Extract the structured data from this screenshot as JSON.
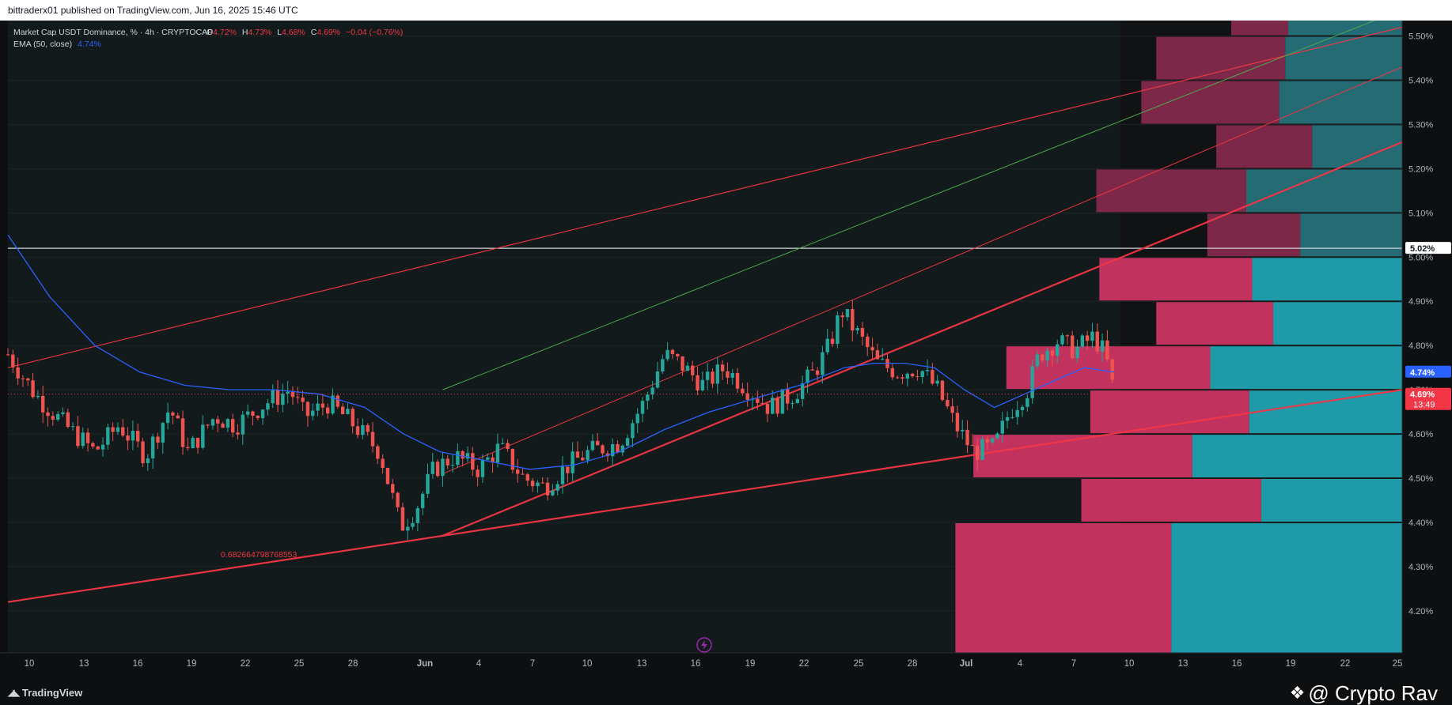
{
  "header": {
    "published": "bittraderx01 published on TradingView.com, Jun 16, 2025 15:46 UTC"
  },
  "legend": {
    "symbol": "Market Cap USDT Dominance, % · 4h · CRYPTOCAP",
    "o_label": "O",
    "o_value": "4.72%",
    "h_label": "H",
    "h_value": "4.73%",
    "l_label": "L",
    "l_value": "4.68%",
    "c_label": "C",
    "c_value": "4.69%",
    "change": "−0.04 (−0.76%)",
    "ema_label": "EMA (50, close)",
    "ema_value": "4.74%"
  },
  "price_labels": {
    "level": "5.02%",
    "ema": "4.74%",
    "last": "4.69%",
    "countdown": "13:49"
  },
  "annotation": "0.682664798768553",
  "footer": {
    "brand": "TradingView",
    "watermark": "@ Crypto Rav"
  },
  "colors": {
    "up": "#26a69a",
    "down": "#ef5350",
    "ema": "#2962ff",
    "trend": "#f23645",
    "green_line": "#4caf50",
    "vp_pink": "#c2325f",
    "vp_teal": "#1e9aa8"
  },
  "chart_data": {
    "type": "candlestick",
    "title": "Market Cap USDT Dominance, % · 4h · CRYPTOCAP",
    "timeframe": "4h",
    "x_ticks": [
      "10",
      "13",
      "16",
      "19",
      "22",
      "25",
      "28",
      "Jun",
      "4",
      "7",
      "10",
      "13",
      "16",
      "19",
      "22",
      "25",
      "28",
      "Jul",
      "4",
      "7",
      "10",
      "13",
      "16",
      "19",
      "22",
      "25"
    ],
    "y_ticks": [
      "5.50%",
      "5.40%",
      "5.30%",
      "5.20%",
      "5.10%",
      "5.00%",
      "4.90%",
      "4.80%",
      "4.70%",
      "4.60%",
      "4.50%",
      "4.40%",
      "4.30%",
      "4.20%"
    ],
    "y_tick_values": [
      5.5,
      5.4,
      5.3,
      5.2,
      5.1,
      5.0,
      4.9,
      4.8,
      4.7,
      4.6,
      4.5,
      4.4,
      4.3,
      4.2
    ],
    "ylim": [
      4.105,
      5.535
    ],
    "x_range_days": [
      9.6,
      56.1
    ],
    "last_day": 46.5,
    "shaded_until_day": 46.7,
    "close_path": [
      [
        9.6,
        4.78
      ],
      [
        10.5,
        4.69
      ],
      [
        11.5,
        4.62
      ],
      [
        12.5,
        4.56
      ],
      [
        13.3,
        4.62
      ],
      [
        14.2,
        4.55
      ],
      [
        15.0,
        4.66
      ],
      [
        15.6,
        4.56
      ],
      [
        16.5,
        4.64
      ],
      [
        17.2,
        4.62
      ],
      [
        18.2,
        4.67
      ],
      [
        19.0,
        4.7
      ],
      [
        19.5,
        4.64
      ],
      [
        20.3,
        4.67
      ],
      [
        21.0,
        4.63
      ],
      [
        22.0,
        4.56
      ],
      [
        22.7,
        4.39
      ],
      [
        23.2,
        4.43
      ],
      [
        23.8,
        4.52
      ],
      [
        24.5,
        4.55
      ],
      [
        25.3,
        4.52
      ],
      [
        26.0,
        4.57
      ],
      [
        26.8,
        4.5
      ],
      [
        27.5,
        4.48
      ],
      [
        28.3,
        4.53
      ],
      [
        29.0,
        4.56
      ],
      [
        30.0,
        4.58
      ],
      [
        30.8,
        4.67
      ],
      [
        31.5,
        4.78
      ],
      [
        32.0,
        4.76
      ],
      [
        32.8,
        4.71
      ],
      [
        33.5,
        4.75
      ],
      [
        34.3,
        4.7
      ],
      [
        35.0,
        4.66
      ],
      [
        35.8,
        4.69
      ],
      [
        36.5,
        4.74
      ],
      [
        37.0,
        4.8
      ],
      [
        37.4,
        4.88
      ],
      [
        38.0,
        4.82
      ],
      [
        38.6,
        4.76
      ],
      [
        39.3,
        4.74
      ],
      [
        40.0,
        4.75
      ],
      [
        40.6,
        4.7
      ],
      [
        41.2,
        4.62
      ],
      [
        41.8,
        4.56
      ],
      [
        42.5,
        4.57
      ],
      [
        43.0,
        4.65
      ],
      [
        43.6,
        4.7
      ],
      [
        44.0,
        4.78
      ],
      [
        44.6,
        4.81
      ],
      [
        45.2,
        4.79
      ],
      [
        45.8,
        4.82
      ],
      [
        46.2,
        4.78
      ],
      [
        46.5,
        4.69
      ]
    ],
    "ema_50": [
      [
        9.6,
        5.05
      ],
      [
        11.0,
        4.91
      ],
      [
        12.5,
        4.8
      ],
      [
        14.0,
        4.74
      ],
      [
        15.5,
        4.71
      ],
      [
        17.0,
        4.7
      ],
      [
        18.5,
        4.7
      ],
      [
        20.0,
        4.69
      ],
      [
        21.5,
        4.66
      ],
      [
        22.8,
        4.6
      ],
      [
        24.0,
        4.56
      ],
      [
        25.5,
        4.54
      ],
      [
        27.0,
        4.52
      ],
      [
        28.5,
        4.53
      ],
      [
        30.0,
        4.56
      ],
      [
        31.5,
        4.61
      ],
      [
        33.0,
        4.65
      ],
      [
        34.5,
        4.68
      ],
      [
        36.0,
        4.71
      ],
      [
        37.5,
        4.75
      ],
      [
        38.5,
        4.76
      ],
      [
        39.5,
        4.76
      ],
      [
        40.5,
        4.75
      ],
      [
        41.5,
        4.7
      ],
      [
        42.5,
        4.66
      ],
      [
        43.5,
        4.69
      ],
      [
        44.5,
        4.72
      ],
      [
        45.5,
        4.75
      ],
      [
        46.5,
        4.74
      ]
    ],
    "horizontal_line": {
      "value": 5.02,
      "label": "5.02%"
    },
    "last_price": 4.69,
    "ema_last": 4.74,
    "trendlines": [
      {
        "name": "channel-upper",
        "from": [
          9.6,
          4.75
        ],
        "to": [
          56.1,
          5.52
        ],
        "color": "#f23645",
        "width": 1.2
      },
      {
        "name": "green-diagonal",
        "from": [
          24.1,
          4.7
        ],
        "to": [
          56.1,
          5.56
        ],
        "color": "#4caf50",
        "width": 1.0
      },
      {
        "name": "thin-red-diagonal",
        "from": [
          24.1,
          4.51
        ],
        "to": [
          56.1,
          5.43
        ],
        "color": "#f23645",
        "width": 1.0
      },
      {
        "name": "bold-support",
        "from": [
          24.1,
          4.37
        ],
        "to": [
          56.1,
          5.26
        ],
        "color": "#f23645",
        "width": 2.2
      },
      {
        "name": "lower-trend",
        "from": [
          9.6,
          4.22
        ],
        "to": [
          56.1,
          4.7
        ],
        "color": "#f23645",
        "width": 2.2
      }
    ],
    "volume_profile": {
      "right_day": 56.1,
      "rows": [
        {
          "low": 5.5,
          "high": 5.55,
          "pink_from": 50.4,
          "teal_from": 52.3
        },
        {
          "low": 5.4,
          "high": 5.5,
          "pink_from": 47.9,
          "teal_from": 52.2
        },
        {
          "low": 5.3,
          "high": 5.4,
          "pink_from": 47.4,
          "teal_from": 52.0
        },
        {
          "low": 5.2,
          "high": 5.3,
          "pink_from": 49.9,
          "teal_from": 53.1
        },
        {
          "low": 5.1,
          "high": 5.2,
          "pink_from": 45.9,
          "teal_from": 50.9
        },
        {
          "low": 5.0,
          "high": 5.1,
          "pink_from": 49.6,
          "teal_from": 52.7
        },
        {
          "low": 4.9,
          "high": 5.0,
          "pink_from": 46.0,
          "teal_from": 51.1
        },
        {
          "low": 4.8,
          "high": 4.9,
          "pink_from": 47.9,
          "teal_from": 51.8
        },
        {
          "low": 4.7,
          "high": 4.8,
          "pink_from": 42.9,
          "teal_from": 49.7
        },
        {
          "low": 4.6,
          "high": 4.7,
          "pink_from": 45.7,
          "teal_from": 51.0
        },
        {
          "low": 4.5,
          "high": 4.6,
          "pink_from": 41.8,
          "teal_from": 49.1
        },
        {
          "low": 4.4,
          "high": 4.5,
          "pink_from": 45.4,
          "teal_from": 51.4
        },
        {
          "low": 4.1,
          "high": 4.4,
          "pink_from": 41.2,
          "teal_from": 48.4
        }
      ]
    }
  }
}
